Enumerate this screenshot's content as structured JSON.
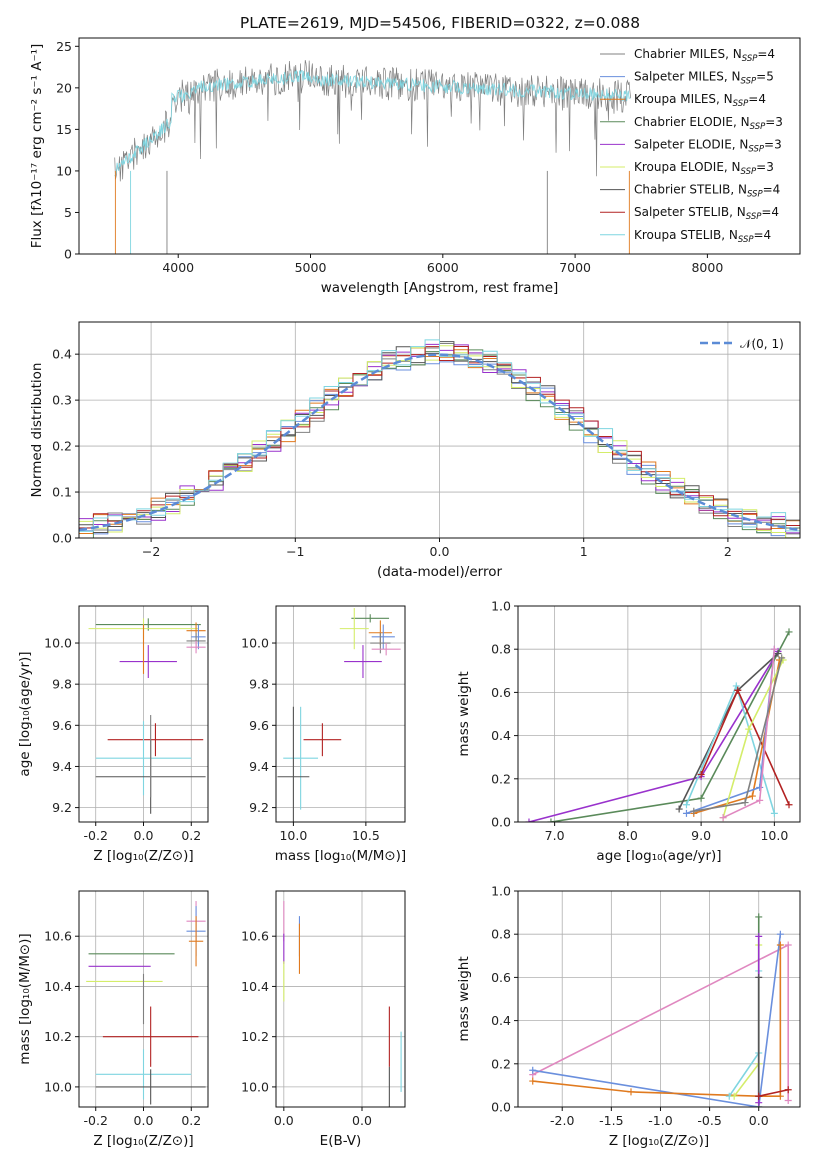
{
  "figure": {
    "title": "PLATE=2619, MJD=54506, FIBERID=0322, z=0.088",
    "colors": {
      "grey": "#808080",
      "grey_dark": "#555555",
      "green": "#5a8a5a",
      "purple": "#9932cc",
      "yellow": "#d4ed6a",
      "blue": "#6a8fdd",
      "orange": "#e07a1f",
      "red": "#b22222",
      "cyan": "#7fd5e0",
      "pink": "#e088c0",
      "normal": "#5b8bd6"
    },
    "legend_entries": [
      {
        "label": "Chabrier MILES, N",
        "sub": "SSP",
        "tail": "=4",
        "color": "#808080"
      },
      {
        "label": "Salpeter MILES, N",
        "sub": "SSP",
        "tail": "=5",
        "color": "#6a8fdd"
      },
      {
        "label": "Kroupa MILES, N",
        "sub": "SSP",
        "tail": "=4",
        "color": "#e07a1f"
      },
      {
        "label": "Chabrier ELODIE, N",
        "sub": "SSP",
        "tail": "=3",
        "color": "#5a8a5a"
      },
      {
        "label": "Salpeter ELODIE, N",
        "sub": "SSP",
        "tail": "=3",
        "color": "#9932cc"
      },
      {
        "label": "Kroupa ELODIE, N",
        "sub": "SSP",
        "tail": "=3",
        "color": "#d4ed6a"
      },
      {
        "label": "Chabrier STELIB, N",
        "sub": "SSP",
        "tail": "=4",
        "color": "#555555"
      },
      {
        "label": "Salpeter STELIB, N",
        "sub": "SSP",
        "tail": "=4",
        "color": "#b22222"
      },
      {
        "label": "Kroupa STELIB, N",
        "sub": "SSP",
        "tail": "=4",
        "color": "#7fd5e0"
      }
    ]
  },
  "chart_data": [
    {
      "id": "spectrum",
      "type": "line",
      "xlabel": "wavelength [Angstrom, rest frame]",
      "ylabel": "Flux [fλ10⁻¹⁷ erg cm⁻² s⁻¹ A⁻¹]",
      "xlim": [
        3250,
        8700
      ],
      "ylim": [
        0,
        26
      ],
      "xticks": [
        4000,
        5000,
        6000,
        7000,
        8000
      ],
      "yticks": [
        0,
        5,
        10,
        15,
        20,
        25
      ],
      "grid": false,
      "legend": "upper right",
      "wave_range": [
        3520,
        7420
      ],
      "model_range": [
        3520,
        7420
      ]
    },
    {
      "id": "residuals",
      "type": "histogram",
      "xlabel": "(data-model)/error",
      "ylabel": "Normed distribution",
      "xlim": [
        -2.5,
        2.5
      ],
      "ylim": [
        0,
        0.47
      ],
      "xticks": [
        -2,
        -1,
        0,
        1,
        2
      ],
      "yticks": [
        0.0,
        0.1,
        0.2,
        0.3,
        0.4
      ],
      "grid": true,
      "legend": "upper right",
      "legend_label": "𝒩(0, 1)",
      "bin_width": 0.1,
      "series": [
        {
          "color": "#808080",
          "offset": 0.0,
          "seed": 1
        },
        {
          "color": "#6a8fdd",
          "offset": 0.02,
          "seed": 2
        },
        {
          "color": "#e07a1f",
          "offset": 0.04,
          "seed": 3
        },
        {
          "color": "#5a8a5a",
          "offset": 0.01,
          "seed": 4
        },
        {
          "color": "#9932cc",
          "offset": 0.03,
          "seed": 5
        },
        {
          "color": "#d4ed6a",
          "offset": 0.05,
          "seed": 6
        },
        {
          "color": "#555555",
          "offset": 0.06,
          "seed": 7
        },
        {
          "color": "#b22222",
          "offset": 0.07,
          "seed": 8
        },
        {
          "color": "#7fd5e0",
          "offset": 0.08,
          "seed": 9
        }
      ]
    },
    {
      "id": "age_vs_Z",
      "type": "errorbar",
      "xlabel": "Z [log₁₀(Z/Z⊙)]",
      "ylabel": "age  [log₁₀(age/yr)]",
      "xlim": [
        -0.27,
        0.27
      ],
      "ylim": [
        9.13,
        10.18
      ],
      "xticks": [
        -0.2,
        0.0,
        0.2
      ],
      "yticks": [
        9.2,
        9.4,
        9.6,
        9.8,
        10.0
      ],
      "grid": true,
      "points": [
        {
          "x": 0.02,
          "y": 10.09,
          "xerr": 0.22,
          "yerr": 0.03,
          "color": "#5a8a5a"
        },
        {
          "x": 0.0,
          "y": 10.07,
          "xerr": 0.23,
          "yerr": 0.05,
          "color": "#d4ed6a"
        },
        {
          "x": 0.22,
          "y": 10.06,
          "xerr": 0.04,
          "yerr": 0.04,
          "color": "#e07a1f"
        },
        {
          "x": 0.23,
          "y": 10.03,
          "xerr": 0.03,
          "yerr": 0.06,
          "color": "#6a8fdd"
        },
        {
          "x": 0.22,
          "y": 10.01,
          "xerr": 0.04,
          "yerr": 0.04,
          "color": "#808080"
        },
        {
          "x": 0.22,
          "y": 9.98,
          "xerr": 0.04,
          "yerr": 0.03,
          "color": "#e088c0"
        },
        {
          "x": 0.02,
          "y": 9.91,
          "xerr": 0.12,
          "yerr": 0.08,
          "color": "#9932cc"
        },
        {
          "x": 0.0,
          "y": 9.97,
          "xerr": 0.0,
          "yerr": 0.12,
          "color": "#e07a1f"
        },
        {
          "x": 0.05,
          "y": 9.53,
          "xerr": 0.2,
          "yerr": 0.08,
          "color": "#b22222"
        },
        {
          "x": 0.0,
          "y": 9.44,
          "xerr": 0.2,
          "yerr": 0.18,
          "color": "#7fd5e0"
        },
        {
          "x": 0.03,
          "y": 9.35,
          "xerr": 0.23,
          "yerr": 0.18,
          "color": "#555555"
        },
        {
          "x": 0.03,
          "y": 9.45,
          "xerr": 0.0,
          "yerr": 0.2,
          "color": "#808080"
        }
      ]
    },
    {
      "id": "age_vs_mass",
      "type": "errorbar",
      "xlabel": "mass [log₁₀(M/M⊙)]",
      "ylabel": "",
      "xlim": [
        9.88,
        10.77
      ],
      "ylim": [
        9.13,
        10.18
      ],
      "xticks": [
        10.0,
        10.5
      ],
      "yticks": [
        9.2,
        9.4,
        9.6,
        9.8,
        10.0
      ],
      "grid": true,
      "points": [
        {
          "x": 10.53,
          "y": 10.12,
          "xerr": 0.13,
          "yerr": 0.02,
          "color": "#5a8a5a"
        },
        {
          "x": 10.42,
          "y": 10.07,
          "xerr": 0.1,
          "yerr": 0.1,
          "color": "#d4ed6a"
        },
        {
          "x": 10.6,
          "y": 10.05,
          "xerr": 0.08,
          "yerr": 0.06,
          "color": "#e07a1f"
        },
        {
          "x": 10.62,
          "y": 10.03,
          "xerr": 0.08,
          "yerr": 0.06,
          "color": "#6a8fdd"
        },
        {
          "x": 10.6,
          "y": 10.0,
          "xerr": 0.07,
          "yerr": 0.05,
          "color": "#808080"
        },
        {
          "x": 10.64,
          "y": 9.97,
          "xerr": 0.1,
          "yerr": 0.03,
          "color": "#e088c0"
        },
        {
          "x": 10.48,
          "y": 9.91,
          "xerr": 0.13,
          "yerr": 0.08,
          "color": "#9932cc"
        },
        {
          "x": 10.2,
          "y": 9.53,
          "xerr": 0.13,
          "yerr": 0.08,
          "color": "#b22222"
        },
        {
          "x": 10.05,
          "y": 9.44,
          "xerr": 0.12,
          "yerr": 0.25,
          "color": "#7fd5e0"
        },
        {
          "x": 10.0,
          "y": 9.35,
          "xerr": 0.11,
          "yerr": 0.34,
          "color": "#555555"
        }
      ]
    },
    {
      "id": "weight_vs_age",
      "type": "line",
      "xlabel": "age  [log₁₀(age/yr)]",
      "ylabel": "mass weight",
      "xlim": [
        6.5,
        10.35
      ],
      "ylim": [
        0,
        1
      ],
      "xticks": [
        7,
        8,
        9,
        10
      ],
      "yticks": [
        0.0,
        0.2,
        0.4,
        0.6,
        0.8,
        1.0
      ],
      "grid": true,
      "series": [
        {
          "color": "#9932cc",
          "points": [
            [
              6.65,
              0.0
            ],
            [
              9.0,
              0.21
            ],
            [
              10.05,
              0.79
            ]
          ]
        },
        {
          "color": "#5a8a5a",
          "points": [
            [
              6.95,
              0.0
            ],
            [
              9.0,
              0.11
            ],
            [
              10.2,
              0.88
            ]
          ]
        },
        {
          "color": "#555555",
          "points": [
            [
              8.7,
              0.06
            ],
            [
              9.5,
              0.61
            ],
            [
              10.05,
              0.78
            ]
          ]
        },
        {
          "color": "#7fd5e0",
          "points": [
            [
              8.8,
              0.08
            ],
            [
              9.48,
              0.63
            ],
            [
              10.0,
              0.04
            ]
          ]
        },
        {
          "color": "#b22222",
          "points": [
            [
              9.0,
              0.22
            ],
            [
              9.5,
              0.61
            ],
            [
              10.2,
              0.08
            ]
          ]
        },
        {
          "color": "#e07a1f",
          "points": [
            [
              8.9,
              0.04
            ],
            [
              9.7,
              0.12
            ],
            [
              10.07,
              0.75
            ]
          ]
        },
        {
          "color": "#6a8fdd",
          "points": [
            [
              8.8,
              0.04
            ],
            [
              9.8,
              0.16
            ],
            [
              10.0,
              0.8
            ]
          ]
        },
        {
          "color": "#d4ed6a",
          "points": [
            [
              9.3,
              0.02
            ],
            [
              9.65,
              0.43
            ],
            [
              10.12,
              0.75
            ]
          ]
        },
        {
          "color": "#e088c0",
          "points": [
            [
              9.3,
              0.02
            ],
            [
              9.8,
              0.1
            ],
            [
              10.0,
              0.8
            ]
          ]
        },
        {
          "color": "#808080",
          "points": [
            [
              8.9,
              0.05
            ],
            [
              9.6,
              0.09
            ],
            [
              10.1,
              0.76
            ]
          ]
        }
      ]
    },
    {
      "id": "mass_vs_Z",
      "type": "errorbar",
      "xlabel": "Z [log₁₀(Z/Z⊙)]",
      "ylabel": "mass [log₁₀(M/M⊙)]",
      "xlim": [
        -0.27,
        0.27
      ],
      "ylim": [
        9.92,
        10.78
      ],
      "xticks": [
        -0.2,
        0.0,
        0.2
      ],
      "yticks": [
        10.0,
        10.2,
        10.4,
        10.6
      ],
      "grid": true,
      "points": [
        {
          "x": 0.22,
          "y": 10.66,
          "xerr": 0.04,
          "yerr": 0.08,
          "color": "#e088c0"
        },
        {
          "x": 0.22,
          "y": 10.62,
          "xerr": 0.04,
          "yerr": 0.1,
          "color": "#6a8fdd"
        },
        {
          "x": 0.22,
          "y": 10.58,
          "xerr": 0.03,
          "yerr": 0.1,
          "color": "#e07a1f"
        },
        {
          "x": -0.05,
          "y": 10.53,
          "xerr": 0.18,
          "yerr": 0.0,
          "color": "#5a8a5a"
        },
        {
          "x": -0.1,
          "y": 10.48,
          "xerr": 0.13,
          "yerr": 0.0,
          "color": "#9932cc"
        },
        {
          "x": -0.08,
          "y": 10.42,
          "xerr": 0.16,
          "yerr": 0.0,
          "color": "#d4ed6a"
        },
        {
          "x": 0.03,
          "y": 10.2,
          "xerr": 0.2,
          "yerr": 0.12,
          "color": "#b22222"
        },
        {
          "x": 0.0,
          "y": 10.05,
          "xerr": 0.2,
          "yerr": 0.1,
          "color": "#7fd5e0"
        },
        {
          "x": 0.03,
          "y": 10.0,
          "xerr": 0.23,
          "yerr": 0.07,
          "color": "#555555"
        },
        {
          "x": 0.0,
          "y": 10.35,
          "xerr": 0.0,
          "yerr": 0.1,
          "color": "#808080"
        }
      ]
    },
    {
      "id": "mass_vs_EBV",
      "type": "errorbar",
      "xlabel": "E(B-V)",
      "ylabel": "",
      "xlim": [
        -0.002,
        0.031
      ],
      "ylim": [
        9.92,
        10.78
      ],
      "xticks": [
        0.0,
        0.02
      ],
      "yticks": [
        10.0,
        10.2,
        10.4,
        10.6
      ],
      "grid": true,
      "points": [
        {
          "x": 0.0,
          "y": 10.66,
          "xerr": 0.0,
          "yerr": 0.08,
          "color": "#e088c0"
        },
        {
          "x": 0.0,
          "y": 10.55,
          "xerr": 0.0,
          "yerr": 0.06,
          "color": "#9932cc"
        },
        {
          "x": 0.0,
          "y": 10.42,
          "xerr": 0.0,
          "yerr": 0.08,
          "color": "#d4ed6a"
        },
        {
          "x": 0.004,
          "y": 10.6,
          "xerr": 0.0,
          "yerr": 0.08,
          "color": "#6a8fdd"
        },
        {
          "x": 0.004,
          "y": 10.55,
          "xerr": 0.0,
          "yerr": 0.1,
          "color": "#e07a1f"
        },
        {
          "x": 0.027,
          "y": 10.2,
          "xerr": 0.0,
          "yerr": 0.12,
          "color": "#b22222"
        },
        {
          "x": 0.027,
          "y": 10.0,
          "xerr": 0.0,
          "yerr": 0.08,
          "color": "#555555"
        },
        {
          "x": 0.03,
          "y": 10.1,
          "xerr": 0.0,
          "yerr": 0.12,
          "color": "#7fd5e0"
        }
      ]
    },
    {
      "id": "weight_vs_Z",
      "type": "line",
      "xlabel": "Z [log₁₀(Z/Z⊙)]",
      "ylabel": "mass weight",
      "xlim": [
        -2.45,
        0.42
      ],
      "ylim": [
        0,
        1
      ],
      "xticks": [
        -2.0,
        -1.5,
        -1.0,
        -0.5,
        0.0
      ],
      "yticks": [
        0.0,
        0.2,
        0.4,
        0.6,
        0.8,
        1.0
      ],
      "grid": true,
      "series": [
        {
          "color": "#e088c0",
          "points": [
            [
              -2.3,
              0.15
            ],
            [
              0.3,
              0.75
            ],
            [
              0.3,
              0.03
            ]
          ]
        },
        {
          "color": "#6a8fdd",
          "points": [
            [
              -2.3,
              0.17
            ],
            [
              0.0,
              0.0
            ],
            [
              0.22,
              0.8
            ]
          ]
        },
        {
          "color": "#e07a1f",
          "points": [
            [
              -2.3,
              0.12
            ],
            [
              -1.3,
              0.07
            ],
            [
              0.0,
              0.05
            ],
            [
              0.22,
              0.05
            ],
            [
              0.22,
              0.75
            ]
          ]
        },
        {
          "color": "#7fd5e0",
          "points": [
            [
              -0.3,
              0.05
            ],
            [
              0.0,
              0.25
            ],
            [
              0.0,
              0.63
            ]
          ]
        },
        {
          "color": "#d4ed6a",
          "points": [
            [
              -0.25,
              0.05
            ],
            [
              0.0,
              0.2
            ],
            [
              0.0,
              0.75
            ]
          ]
        },
        {
          "color": "#5a8a5a",
          "points": [
            [
              0.0,
              0.0
            ],
            [
              0.0,
              0.88
            ]
          ]
        },
        {
          "color": "#9932cc",
          "points": [
            [
              0.0,
              0.02
            ],
            [
              0.0,
              0.79
            ]
          ]
        },
        {
          "color": "#555555",
          "points": [
            [
              0.0,
              0.05
            ],
            [
              0.0,
              0.6
            ]
          ]
        },
        {
          "color": "#b22222",
          "points": [
            [
              0.0,
              0.05
            ],
            [
              0.3,
              0.08
            ]
          ]
        }
      ]
    }
  ]
}
